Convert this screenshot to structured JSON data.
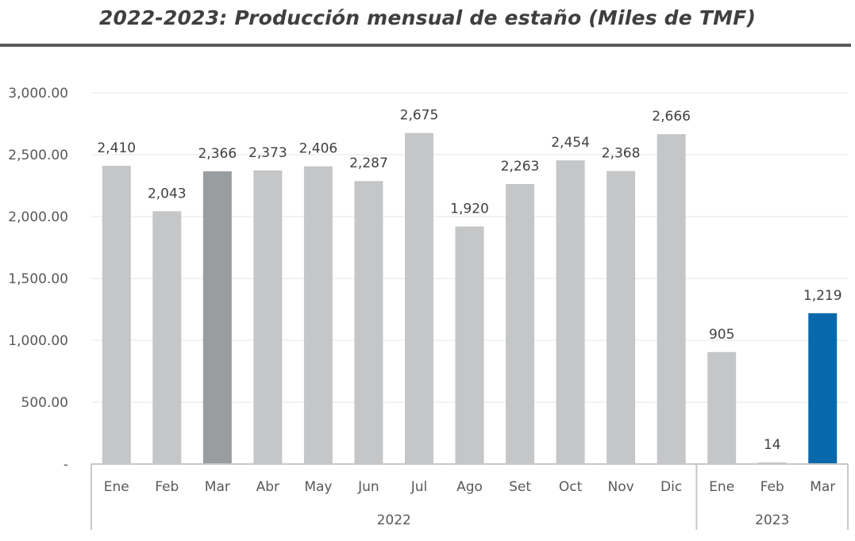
{
  "chart_data": {
    "type": "bar",
    "title": "2022-2023: Producción mensual de estaño (Miles de TMF)",
    "xlabel": "",
    "ylabel": "",
    "ylim": [
      0,
      3000
    ],
    "yticks": [
      {
        "value": 0,
        "label": "-"
      },
      {
        "value": 500,
        "label": "500.00"
      },
      {
        "value": 1000,
        "label": "1,000.00"
      },
      {
        "value": 1500,
        "label": "1,500.00"
      },
      {
        "value": 2000,
        "label": "2,000.00"
      },
      {
        "value": 2500,
        "label": "2,500.00"
      },
      {
        "value": 3000,
        "label": "3,000.00"
      }
    ],
    "grid": true,
    "groups": [
      {
        "label": "2022",
        "categories": [
          "Ene",
          "Feb",
          "Mar",
          "Abr",
          "May",
          "Jun",
          "Jul",
          "Ago",
          "Set",
          "Oct",
          "Nov",
          "Dic"
        ]
      },
      {
        "label": "2023",
        "categories": [
          "Ene",
          "Feb",
          "Mar"
        ]
      }
    ],
    "categories": [
      "Ene",
      "Feb",
      "Mar",
      "Abr",
      "May",
      "Jun",
      "Jul",
      "Ago",
      "Set",
      "Oct",
      "Nov",
      "Dic",
      "Ene",
      "Feb",
      "Mar"
    ],
    "values": [
      2410,
      2043,
      2366,
      2373,
      2406,
      2287,
      2675,
      1920,
      2263,
      2454,
      2368,
      2666,
      905,
      14,
      1219
    ],
    "value_labels": [
      "2,410",
      "2,043",
      "2,366",
      "2,373",
      "2,406",
      "2,287",
      "2,675",
      "1,920",
      "2,263",
      "2,454",
      "2,368",
      "2,666",
      "905",
      "14",
      "1,219"
    ],
    "bar_colors": [
      "#c4c6c8",
      "#c4c6c8",
      "#9a9d9f",
      "#c4c6c8",
      "#c4c6c8",
      "#c4c6c8",
      "#c4c6c8",
      "#c4c6c8",
      "#c4c6c8",
      "#c4c6c8",
      "#c4c6c8",
      "#c4c6c8",
      "#c4c6c8",
      "#c4c6c8",
      "#0868ac"
    ]
  },
  "colors": {
    "axis": "#c8c8c8",
    "grid": "#e6e6e6",
    "title_rule": "#5a5a5a"
  }
}
